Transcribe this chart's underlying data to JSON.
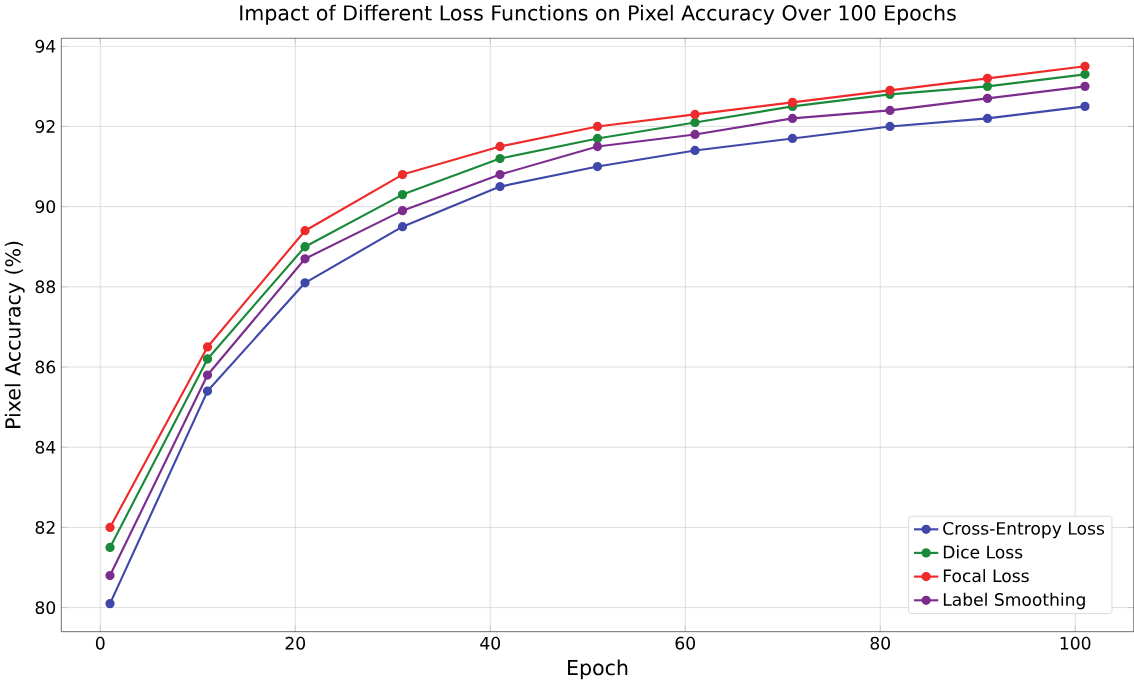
{
  "chart_data": {
    "type": "line",
    "title": "Impact of Different Loss Functions on Pixel Accuracy Over 100 Epochs",
    "xlabel": "Epoch",
    "ylabel": "Pixel Accuracy (%)",
    "x": [
      1,
      11,
      21,
      31,
      41,
      51,
      61,
      71,
      81,
      91,
      101
    ],
    "series": [
      {
        "name": "Cross-Entropy Loss",
        "color": "#3f48a8",
        "values": [
          80.1,
          85.4,
          88.1,
          89.5,
          90.5,
          91.0,
          91.4,
          91.7,
          92.0,
          92.2,
          92.5
        ]
      },
      {
        "name": "Dice Loss",
        "color": "#1a8a3a",
        "values": [
          81.5,
          86.2,
          89.0,
          90.3,
          91.2,
          91.7,
          92.1,
          92.5,
          92.8,
          93.0,
          93.3
        ]
      },
      {
        "name": "Focal Loss",
        "color": "#ee2a2a",
        "values": [
          82.0,
          86.5,
          89.4,
          90.8,
          91.5,
          92.0,
          92.3,
          92.6,
          92.9,
          93.2,
          93.5
        ]
      },
      {
        "name": "Label Smoothing",
        "color": "#7b2d8e",
        "values": [
          80.8,
          85.8,
          88.7,
          89.9,
          90.8,
          91.5,
          91.8,
          92.2,
          92.4,
          92.7,
          93.0
        ]
      }
    ],
    "xlim": [
      -4,
      106
    ],
    "ylim": [
      79.4,
      94.2
    ],
    "xticks": [
      0,
      20,
      40,
      60,
      80,
      100
    ],
    "yticks": [
      80,
      82,
      84,
      86,
      88,
      90,
      92,
      94
    ],
    "grid": true,
    "legend": "bottom right",
    "marker": "circle",
    "line_style": "solid"
  }
}
